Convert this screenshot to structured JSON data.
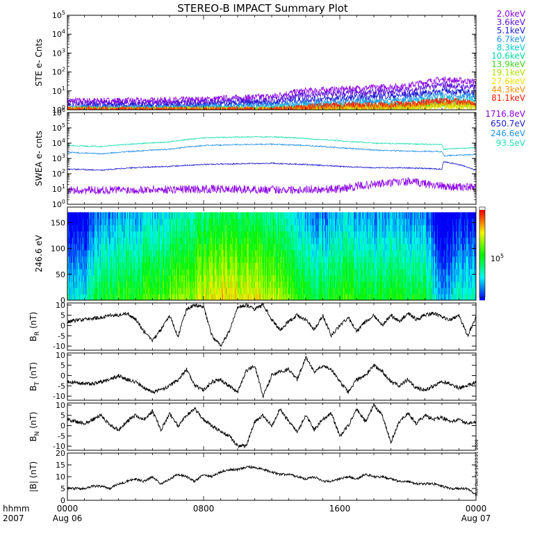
{
  "title": "STEREO-B IMPACT Summary Plot",
  "timestamp": "Mon Dec 14 16:23:21 2009",
  "time_axis": {
    "row1": [
      "hhmm",
      "0000",
      "0800",
      "1600",
      "0000"
    ],
    "row2": [
      "2007",
      "Aug 06",
      "",
      "",
      "Aug 07"
    ]
  },
  "colors": {
    "axis": "#000000",
    "purple": "#8a00e6",
    "blue_dark": "#1b1bd0",
    "blue": "#2060e0",
    "cyan": "#00b8e8",
    "teal": "#00d0c0",
    "green": "#30d030",
    "lime": "#a0e000",
    "yellow": "#e0e000",
    "orange": "#ff9000",
    "red": "#ff2000"
  },
  "chart_data": [
    {
      "type": "line",
      "ylabel": "STE e- Cnts",
      "yscale": "log",
      "ylim": [
        1,
        100000
      ],
      "yticks": [
        "10^0",
        "10^1",
        "10^2",
        "10^3",
        "10^4",
        "10^5"
      ],
      "xlim": [
        0,
        24
      ],
      "series": [
        {
          "name": "2.0keV",
          "color": "#8a00e6",
          "x": [
            0,
            4,
            8,
            12,
            14,
            16,
            20,
            22,
            24
          ],
          "y": [
            3,
            3,
            3.5,
            5,
            10,
            12,
            18,
            40,
            30
          ]
        },
        {
          "name": "3.6keV",
          "color": "#5a10d8",
          "x": [
            0,
            4,
            8,
            12,
            14,
            16,
            20,
            22,
            24
          ],
          "y": [
            2.2,
            2.2,
            2.5,
            3.5,
            6,
            7,
            10,
            20,
            15
          ]
        },
        {
          "name": "5.1keV",
          "color": "#1b1bd0",
          "x": [
            0,
            4,
            8,
            12,
            14,
            16,
            20,
            22,
            24
          ],
          "y": [
            1.6,
            1.6,
            1.8,
            2.4,
            3.5,
            4,
            6,
            10,
            8
          ]
        },
        {
          "name": "6.7keV",
          "color": "#2090e8",
          "x": [
            0,
            4,
            8,
            12,
            14,
            16,
            20,
            22,
            24
          ],
          "y": [
            1.3,
            1.3,
            1.4,
            1.7,
            2.2,
            2.5,
            3.5,
            6,
            5
          ]
        },
        {
          "name": "8.3keV",
          "color": "#00c8d8",
          "x": [
            0,
            4,
            8,
            12,
            14,
            16,
            20,
            22,
            24
          ],
          "y": [
            1.1,
            1.1,
            1.15,
            1.3,
            1.6,
            1.8,
            2.4,
            4,
            3
          ]
        },
        {
          "name": "10.6keV",
          "color": "#00d8a0",
          "x": [
            0,
            8,
            12,
            14,
            16,
            20,
            22,
            24
          ],
          "y": [
            1,
            1,
            1.05,
            1.2,
            1.3,
            1.6,
            2.5,
            2
          ]
        },
        {
          "name": "13.9keV",
          "color": "#40d020",
          "x": [
            0,
            12,
            14,
            16,
            20,
            22,
            24
          ],
          "y": [
            1,
            1,
            1.1,
            1.2,
            1.4,
            2,
            1.8
          ]
        },
        {
          "name": "19.1keV",
          "color": "#b0e000",
          "x": [
            0,
            12,
            14,
            16,
            20,
            22,
            24
          ],
          "y": [
            1,
            1,
            1.05,
            1.1,
            1.3,
            1.7,
            1.5
          ]
        },
        {
          "name": "27.6keV",
          "color": "#f0e000",
          "x": [
            0,
            12,
            14,
            16,
            20,
            22,
            24
          ],
          "y": [
            1,
            1,
            1.05,
            1.1,
            1.2,
            1.5,
            1.4
          ]
        },
        {
          "name": "44.3keV",
          "color": "#ff9000",
          "x": [
            0,
            12,
            14,
            16,
            20,
            22,
            24
          ],
          "y": [
            1,
            1,
            1.2,
            1.4,
            1.6,
            2.4,
            2
          ]
        },
        {
          "name": "81.1keV",
          "color": "#ff2000",
          "x": [
            0,
            12,
            14,
            16,
            20,
            22,
            24
          ],
          "y": [
            1,
            1,
            1.5,
            1.8,
            2,
            3,
            2.5
          ]
        }
      ]
    },
    {
      "type": "line",
      "ylabel": "SWEA e- cnts",
      "yscale": "log",
      "ylim": [
        1,
        1000000
      ],
      "yticks": [
        "10^0",
        "10^1",
        "10^2",
        "10^3",
        "10^4",
        "10^5",
        "10^6"
      ],
      "xlim": [
        0,
        24
      ],
      "series": [
        {
          "name": "1716.8eV",
          "color": "#8a00e6",
          "x": [
            0,
            4,
            8,
            12,
            16,
            18,
            20,
            22,
            24
          ],
          "y": [
            8,
            9,
            10,
            9,
            10,
            20,
            30,
            15,
            12
          ]
        },
        {
          "name": "650.7eV",
          "color": "#1b1bd0",
          "x": [
            0,
            2,
            4,
            6,
            8,
            10,
            12,
            14,
            16,
            18,
            20,
            22,
            22.1,
            24
          ],
          "y": [
            200,
            170,
            250,
            300,
            400,
            450,
            480,
            400,
            300,
            250,
            240,
            200,
            600,
            150
          ]
        },
        {
          "name": "246.6eV",
          "color": "#2090e8",
          "x": [
            0,
            2,
            4,
            6,
            8,
            10,
            12,
            14,
            16,
            18,
            20,
            22,
            22.1,
            24
          ],
          "y": [
            2500,
            2000,
            3000,
            4000,
            7000,
            8000,
            8500,
            7000,
            5000,
            3500,
            3000,
            2800,
            1500,
            1800
          ]
        },
        {
          "name": "93.5eV",
          "color": "#20e0b0",
          "x": [
            0,
            2,
            4,
            6,
            8,
            10,
            12,
            14,
            16,
            18,
            20,
            22,
            22.1,
            24
          ],
          "y": [
            7000,
            6000,
            9000,
            12000,
            22000,
            25000,
            26000,
            20000,
            14000,
            10000,
            9000,
            8000,
            4000,
            5000
          ]
        }
      ]
    },
    {
      "type": "heatmap",
      "ylabel": "246.6 eV",
      "ylim": [
        0,
        180
      ],
      "yticks": [
        "0",
        "50",
        "100",
        "150"
      ],
      "xlim": [
        0,
        24
      ],
      "colorbar_label": "10^5",
      "x": [
        0,
        1,
        2,
        3,
        4,
        5,
        6,
        7,
        8,
        9,
        10,
        11,
        12,
        13,
        14,
        15,
        16,
        17,
        18,
        19,
        20,
        21,
        22,
        23,
        24
      ],
      "level": [
        0.25,
        0.3,
        0.45,
        0.5,
        0.5,
        0.55,
        0.6,
        0.65,
        0.7,
        0.75,
        0.75,
        0.72,
        0.7,
        0.6,
        0.5,
        0.45,
        0.55,
        0.5,
        0.45,
        0.5,
        0.5,
        0.45,
        0.15,
        0.3,
        0.3
      ]
    },
    {
      "type": "line",
      "ylabel": "B_R (nT)",
      "ylim": [
        -12,
        11
      ],
      "yticks": [
        "-10",
        "-5",
        "0",
        "5",
        "10"
      ],
      "xlim": [
        0,
        24
      ],
      "x": [
        0,
        1,
        2,
        2.5,
        3,
        3.5,
        4,
        4.5,
        5,
        5.5,
        6,
        6.5,
        7,
        7.5,
        8,
        8.5,
        9,
        9.5,
        10,
        10.5,
        11,
        11.5,
        12,
        12.5,
        13,
        13.5,
        14,
        14.5,
        15,
        15.5,
        16,
        16.5,
        17,
        17.5,
        18,
        18.5,
        19,
        19.5,
        20,
        20.5,
        21,
        21.5,
        22,
        22.5,
        23,
        23.5,
        24
      ],
      "y": [
        2,
        3,
        4,
        5,
        5,
        6,
        3,
        -3,
        -7,
        -2,
        5,
        -5,
        8,
        10,
        9,
        -5,
        -10,
        -3,
        9,
        10,
        8,
        10,
        3,
        -2,
        2,
        5,
        3,
        -2,
        5,
        -5,
        0,
        4,
        -3,
        2,
        5,
        0,
        5,
        2,
        6,
        3,
        5,
        6,
        4,
        3,
        5,
        -5,
        4
      ],
      "color": "#000000"
    },
    {
      "type": "line",
      "ylabel": "B_T (nT)",
      "ylim": [
        -12,
        11
      ],
      "yticks": [
        "-10",
        "-5",
        "0",
        "5",
        "10"
      ],
      "xlim": [
        0,
        24
      ],
      "x": [
        0,
        1,
        1.5,
        2,
        2.5,
        3,
        3.5,
        4,
        4.5,
        5,
        5.5,
        6,
        6.5,
        7,
        7.5,
        8,
        8.5,
        9,
        9.5,
        10,
        10.5,
        11,
        11.5,
        12,
        12.5,
        13,
        13.5,
        14,
        14.5,
        15,
        15.5,
        16,
        16.5,
        17,
        17.5,
        18,
        18.5,
        19,
        19.5,
        20,
        20.5,
        21,
        21.5,
        22,
        22.5,
        23,
        23.5,
        24
      ],
      "y": [
        -3,
        -4,
        -4,
        -3,
        -2,
        0,
        -2,
        -3,
        -6,
        -8,
        -7,
        -5,
        -2,
        3,
        -5,
        -7,
        -3,
        -2,
        -5,
        -8,
        2,
        5,
        -10,
        0,
        2,
        3,
        -2,
        9,
        2,
        5,
        3,
        -3,
        -8,
        -2,
        0,
        5,
        2,
        -3,
        -5,
        -2,
        -6,
        -7,
        -5,
        -3,
        -4,
        -6,
        -5,
        -3
      ],
      "color": "#000000"
    },
    {
      "type": "line",
      "ylabel": "B_N (nT)",
      "ylim": [
        -12,
        11
      ],
      "yticks": [
        "-10",
        "-5",
        "0",
        "5",
        "10"
      ],
      "xlim": [
        0,
        24
      ],
      "x": [
        0,
        1,
        1.5,
        2,
        2.5,
        3,
        3.5,
        4,
        4.5,
        5,
        5.5,
        6,
        6.5,
        7,
        7.5,
        8,
        8.5,
        9,
        9.5,
        10,
        10.5,
        11,
        11.5,
        12,
        12.5,
        13,
        13.5,
        14,
        14.5,
        15,
        15.5,
        16,
        16.5,
        17,
        17.5,
        18,
        18.5,
        19,
        19.5,
        20,
        20.5,
        21,
        21.5,
        22,
        22.5,
        23,
        23.5,
        24
      ],
      "y": [
        3,
        1,
        3,
        5,
        0,
        -2,
        2,
        5,
        3,
        7,
        -2,
        6,
        0,
        5,
        8,
        3,
        0,
        -3,
        -5,
        -10,
        -10,
        2,
        5,
        0,
        8,
        2,
        -3,
        5,
        -2,
        3,
        6,
        -5,
        0,
        8,
        2,
        10,
        5,
        -8,
        2,
        6,
        1,
        5,
        3,
        4,
        2,
        3,
        1,
        2
      ],
      "color": "#000000"
    },
    {
      "type": "line",
      "ylabel": "|B| (nT)",
      "ylim": [
        0,
        20
      ],
      "yticks": [
        "0",
        "5",
        "10",
        "15",
        "20"
      ],
      "xlim": [
        0,
        24
      ],
      "x": [
        0,
        1,
        1.5,
        2,
        2.5,
        3,
        3.5,
        4,
        4.5,
        5,
        5.5,
        6,
        6.5,
        7,
        7.5,
        8,
        8.5,
        9,
        9.5,
        10,
        10.5,
        11,
        11.5,
        12,
        12.5,
        13,
        13.5,
        14,
        14.5,
        15,
        15.5,
        16,
        16.5,
        17,
        17.5,
        18,
        18.5,
        19,
        19.5,
        20,
        20.5,
        21,
        21.5,
        22,
        22.5,
        23,
        23.5,
        24
      ],
      "y": [
        5,
        5,
        6,
        6,
        5,
        7,
        8,
        9,
        8,
        10,
        7,
        9,
        11,
        10,
        8,
        11,
        10,
        12,
        13,
        13,
        14,
        14,
        13,
        12,
        11,
        11,
        10,
        9,
        10,
        8,
        8,
        9,
        10,
        9,
        11,
        10,
        10,
        9,
        8,
        8,
        7,
        7,
        7,
        6,
        5,
        5,
        5,
        2
      ],
      "color": "#000000"
    }
  ]
}
